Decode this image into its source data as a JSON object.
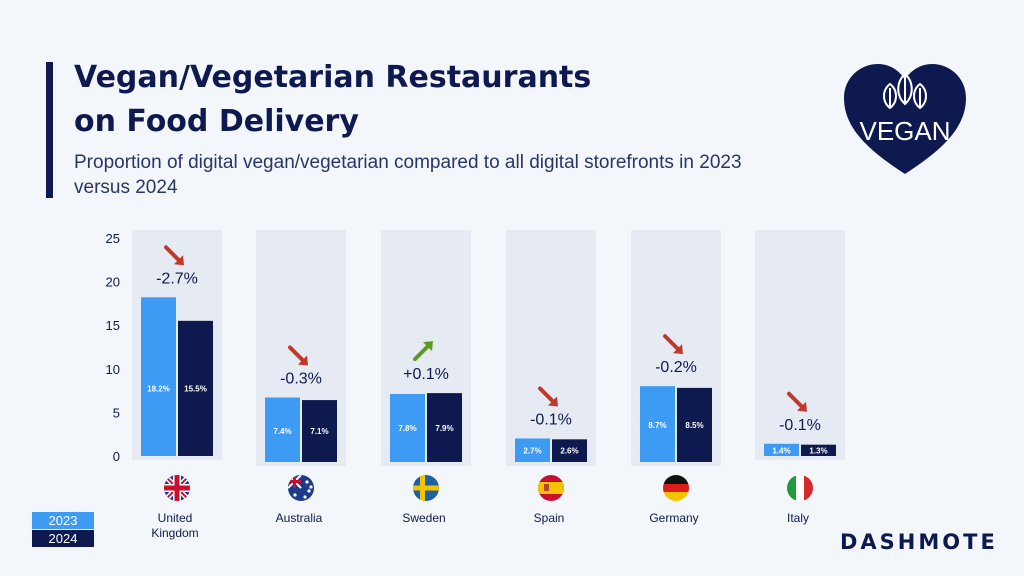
{
  "title_lines": [
    "Vegan/Vegetarian Restaurants",
    "on Food Delivery"
  ],
  "subtitle": "Proportion of digital vegan/vegetarian compared to all digital storefronts in 2023 versus 2024",
  "badge_text": "VEGAN",
  "brand": "DASHMOTE",
  "colors": {
    "y2023": "#3d9bf3",
    "y2024": "#0e1a4f",
    "up": "#5a9a1f",
    "down": "#c0392b",
    "panel": "#e6ebf3"
  },
  "chart_data": {
    "type": "bar",
    "title": "Vegan/Vegetarian Restaurants on Food Delivery",
    "ylim": [
      0,
      25
    ],
    "yticks": [
      "0",
      "5",
      "10",
      "15",
      "20",
      "25"
    ],
    "categories": [
      {
        "name": "United Kingdom",
        "label_lines": [
          "United",
          "Kingdom"
        ],
        "flag": "uk-flag",
        "change": "-2.7%",
        "direction": "down"
      },
      {
        "name": "Australia",
        "label_lines": [
          "Australia"
        ],
        "flag": "australia-flag",
        "change": "-0.3%",
        "direction": "down"
      },
      {
        "name": "Sweden",
        "label_lines": [
          "Sweden"
        ],
        "flag": "sweden-flag",
        "change": "+0.1%",
        "direction": "up"
      },
      {
        "name": "Spain",
        "label_lines": [
          "Spain"
        ],
        "flag": "spain-flag",
        "change": "-0.1%",
        "direction": "down"
      },
      {
        "name": "Germany",
        "label_lines": [
          "Germany"
        ],
        "flag": "germany-flag",
        "change": "-0.2%",
        "direction": "down"
      },
      {
        "name": "Italy",
        "label_lines": [
          "Italy"
        ],
        "flag": "italy-flag",
        "change": "-0.1%",
        "direction": "down"
      }
    ],
    "series": [
      {
        "name": "2023",
        "values": [
          18.2,
          7.4,
          7.8,
          2.7,
          8.7,
          1.4
        ],
        "labels": [
          "18.2%",
          "7.4%",
          "7.8%",
          "2.7%",
          "8.7%",
          "1.4%"
        ]
      },
      {
        "name": "2024",
        "values": [
          15.5,
          7.1,
          7.9,
          2.6,
          8.5,
          1.3
        ],
        "labels": [
          "15.5%",
          "7.1%",
          "7.9%",
          "2.6%",
          "8.5%",
          "1.3%"
        ]
      }
    ],
    "legend": [
      "2023",
      "2024"
    ]
  }
}
